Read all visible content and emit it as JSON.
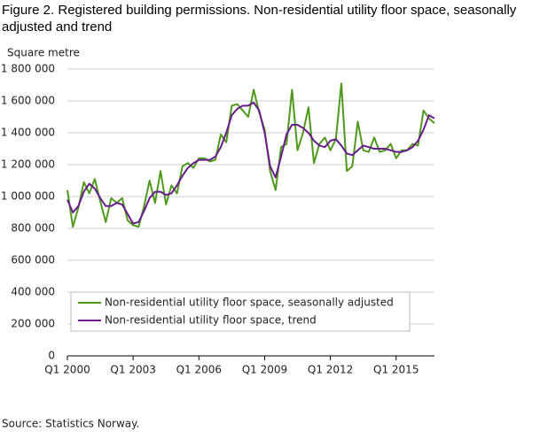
{
  "chart_data": {
    "type": "line",
    "title": "Figure 2. Registered building permissions. Non-residential utility floor space, seasonally adjusted and trend",
    "y_label": "Square metre",
    "source": "Source: Statistics Norway.",
    "categories": [
      "Q1 2000",
      null,
      null,
      null,
      null,
      null,
      null,
      null,
      null,
      null,
      null,
      null,
      "Q1 2003",
      null,
      null,
      null,
      null,
      null,
      null,
      null,
      null,
      null,
      null,
      null,
      "Q1 2006",
      null,
      null,
      null,
      null,
      null,
      null,
      null,
      null,
      null,
      null,
      null,
      "Q1 2009",
      null,
      null,
      null,
      null,
      null,
      null,
      null,
      null,
      null,
      null,
      null,
      "Q1 2012",
      null,
      null,
      null,
      null,
      null,
      null,
      null,
      null,
      null,
      null,
      null,
      "Q1 2015",
      null,
      null,
      null,
      null,
      null,
      null,
      null
    ],
    "series": [
      {
        "name": "Non-residential utility floor space, seasonally adjusted",
        "color": "#4f9a1c",
        "values": [
          1040000,
          810000,
          930000,
          1090000,
          1020000,
          1110000,
          970000,
          840000,
          990000,
          960000,
          990000,
          850000,
          820000,
          810000,
          940000,
          1100000,
          960000,
          1160000,
          950000,
          1070000,
          1020000,
          1190000,
          1210000,
          1180000,
          1240000,
          1240000,
          1220000,
          1230000,
          1390000,
          1340000,
          1570000,
          1580000,
          1540000,
          1500000,
          1670000,
          1530000,
          1420000,
          1160000,
          1040000,
          1310000,
          1330000,
          1670000,
          1290000,
          1400000,
          1560000,
          1210000,
          1330000,
          1370000,
          1290000,
          1360000,
          1710000,
          1160000,
          1190000,
          1470000,
          1290000,
          1280000,
          1370000,
          1280000,
          1290000,
          1330000,
          1240000,
          1290000,
          1290000,
          1330000,
          1320000,
          1540000,
          1490000,
          1460000
        ]
      },
      {
        "name": "Non-residential utility floor space, trend",
        "color": "#6a1b8e",
        "values": [
          980000,
          900000,
          940000,
          1030000,
          1080000,
          1050000,
          990000,
          940000,
          940000,
          960000,
          950000,
          890000,
          830000,
          840000,
          910000,
          990000,
          1030000,
          1030000,
          1010000,
          1020000,
          1070000,
          1130000,
          1180000,
          1210000,
          1230000,
          1230000,
          1230000,
          1250000,
          1310000,
          1400000,
          1510000,
          1550000,
          1570000,
          1570000,
          1590000,
          1540000,
          1400000,
          1190000,
          1120000,
          1250000,
          1390000,
          1450000,
          1450000,
          1430000,
          1400000,
          1350000,
          1320000,
          1310000,
          1350000,
          1360000,
          1320000,
          1270000,
          1260000,
          1290000,
          1320000,
          1310000,
          1300000,
          1300000,
          1300000,
          1290000,
          1280000,
          1280000,
          1290000,
          1310000,
          1350000,
          1420000,
          1510000,
          1490000
        ]
      }
    ],
    "ylim": [
      0,
      1800000
    ],
    "yticks": [
      0,
      {
        "value": 200000,
        "label": "200 000"
      },
      {
        "value": 400000,
        "label": "400 000"
      },
      {
        "value": 600000,
        "label": "600 000"
      },
      {
        "value": 800000,
        "label": "800 000"
      },
      {
        "value": 1000000,
        "label": "1 000 000"
      },
      {
        "value": 1200000,
        "label": "1 200 000"
      },
      {
        "value": 1400000,
        "label": "1 400 000"
      },
      {
        "value": 1600000,
        "label": "1 600 000"
      },
      {
        "value": 1800000,
        "label": "1 800 000"
      }
    ],
    "grid": true,
    "legend": "lower-left"
  }
}
